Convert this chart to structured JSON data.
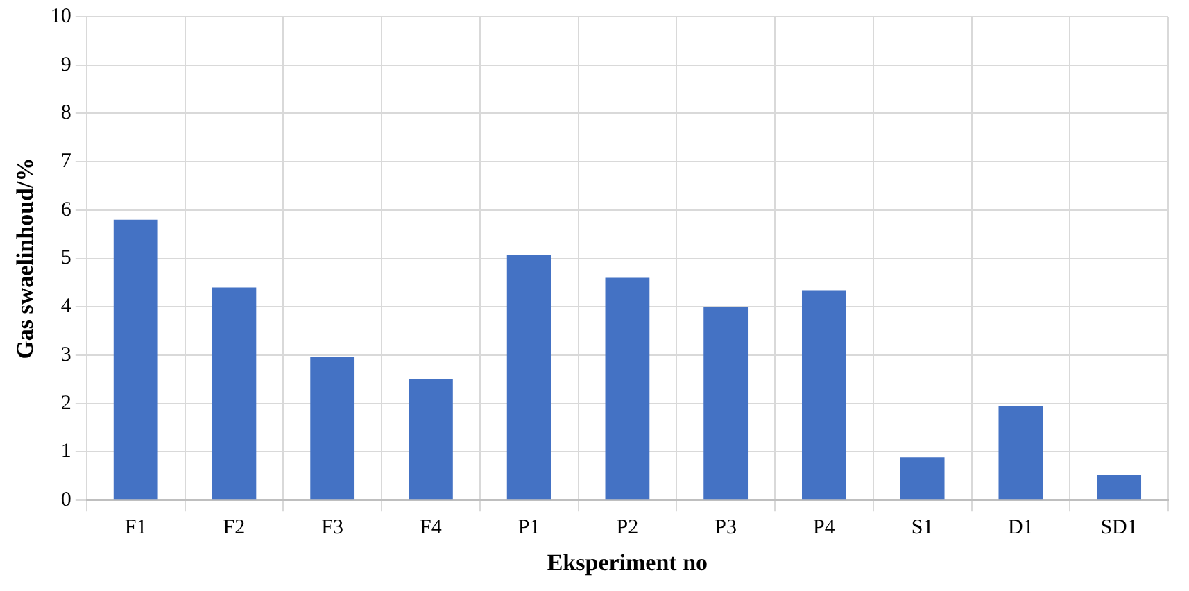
{
  "chart_data": {
    "type": "bar",
    "xlabel": "Eksperiment no",
    "ylabel": "Gas swaelinhoud/%",
    "categories": [
      "F1",
      "F2",
      "F3",
      "F4",
      "P1",
      "P2",
      "P3",
      "P4",
      "S1",
      "D1",
      "SD1"
    ],
    "values": [
      5.8,
      4.4,
      2.96,
      2.5,
      5.08,
      4.6,
      4.0,
      4.34,
      0.89,
      1.95,
      0.52
    ],
    "color": "#4472c4",
    "ylim": [
      0,
      10
    ],
    "yticks": [
      0,
      1,
      2,
      3,
      4,
      5,
      6,
      7,
      8,
      9,
      10
    ],
    "grid": true
  }
}
